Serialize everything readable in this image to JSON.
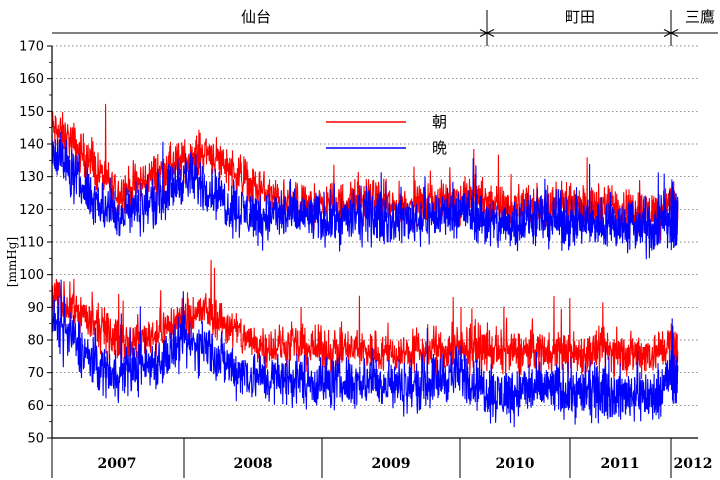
{
  "chart_data": {
    "type": "line",
    "title": "",
    "ylabel": "[mmHg]",
    "ylim": [
      50,
      170
    ],
    "yticks": [
      50,
      60,
      70,
      80,
      90,
      100,
      110,
      120,
      130,
      140,
      150,
      160,
      170
    ],
    "grid": true,
    "legend_placement": "upper-center",
    "x_years": [
      "2007",
      "2008",
      "2009",
      "2010",
      "2011",
      "2012"
    ],
    "locations": [
      "仙台",
      "町田",
      "三鷹"
    ],
    "series": [
      {
        "name": "朝",
        "color": "#ff0000",
        "groups": [
          {
            "measure": "upper",
            "x": [
              "2007-01",
              "2007-03",
              "2007-05",
              "2007-07",
              "2007-09",
              "2007-11",
              "2008-01",
              "2008-03",
              "2008-05",
              "2008-07",
              "2008-09",
              "2008-11",
              "2009-01",
              "2009-03",
              "2009-05",
              "2009-07",
              "2009-09",
              "2009-11",
              "2010-01",
              "2010-03",
              "2010-05",
              "2010-07",
              "2010-09",
              "2010-11",
              "2011-01",
              "2011-03",
              "2011-05",
              "2011-07",
              "2011-09",
              "2011-11",
              "2012-01",
              "2012-03"
            ],
            "values": [
              145,
              140,
              132,
              125,
              128,
              132,
              135,
              138,
              133,
              127,
              123,
              121,
              121,
              122,
              123,
              121,
              121,
              122,
              123,
              124,
              121,
              120,
              121,
              121,
              121,
              120,
              121,
              120,
              120,
              119,
              122,
              118
            ]
          },
          {
            "measure": "lower",
            "x": [
              "2007-01",
              "2007-03",
              "2007-05",
              "2007-07",
              "2007-09",
              "2007-11",
              "2008-01",
              "2008-03",
              "2008-05",
              "2008-07",
              "2008-09",
              "2008-11",
              "2009-01",
              "2009-03",
              "2009-05",
              "2009-07",
              "2009-09",
              "2009-11",
              "2010-01",
              "2010-03",
              "2010-05",
              "2010-07",
              "2010-09",
              "2010-11",
              "2011-01",
              "2011-03",
              "2011-05",
              "2011-07",
              "2011-09",
              "2011-11",
              "2012-01",
              "2012-03"
            ],
            "values": [
              93,
              90,
              84,
              80,
              80,
              83,
              87,
              89,
              84,
              79,
              78,
              78,
              77,
              77,
              77,
              76,
              76,
              77,
              77,
              78,
              76,
              76,
              77,
              77,
              76,
              76,
              77,
              76,
              76,
              76,
              79,
              76
            ]
          }
        ]
      },
      {
        "name": "晩",
        "color": "#0000ff",
        "groups": [
          {
            "measure": "upper",
            "x": [
              "2007-01",
              "2007-03",
              "2007-05",
              "2007-07",
              "2007-09",
              "2007-11",
              "2008-01",
              "2008-03",
              "2008-05",
              "2008-07",
              "2008-09",
              "2008-11",
              "2009-01",
              "2009-03",
              "2009-05",
              "2009-07",
              "2009-09",
              "2009-11",
              "2010-01",
              "2010-03",
              "2010-05",
              "2010-07",
              "2010-09",
              "2010-11",
              "2011-01",
              "2011-03",
              "2011-05",
              "2011-07",
              "2011-09",
              "2011-11",
              "2012-01",
              "2012-03"
            ],
            "values": [
              140,
              130,
              123,
              118,
              121,
              124,
              130,
              127,
              121,
              118,
              118,
              118,
              117,
              117,
              118,
              117,
              117,
              118,
              120,
              118,
              115,
              116,
              117,
              117,
              116,
              116,
              116,
              115,
              115,
              114,
              118,
              117
            ]
          },
          {
            "measure": "lower",
            "x": [
              "2007-01",
              "2007-03",
              "2007-05",
              "2007-07",
              "2007-09",
              "2007-11",
              "2008-01",
              "2008-03",
              "2008-05",
              "2008-07",
              "2008-09",
              "2008-11",
              "2009-01",
              "2009-03",
              "2009-05",
              "2009-07",
              "2009-09",
              "2009-11",
              "2010-01",
              "2010-03",
              "2010-05",
              "2010-07",
              "2010-09",
              "2010-11",
              "2011-01",
              "2011-03",
              "2011-05",
              "2011-07",
              "2011-09",
              "2011-11",
              "2012-01",
              "2012-03"
            ],
            "values": [
              86,
              80,
              72,
              70,
              72,
              74,
              79,
              78,
              72,
              69,
              68,
              68,
              67,
              67,
              68,
              66,
              66,
              68,
              70,
              66,
              63,
              64,
              65,
              65,
              64,
              64,
              64,
              63,
              64,
              62,
              70,
              68
            ]
          }
        ]
      }
    ]
  }
}
